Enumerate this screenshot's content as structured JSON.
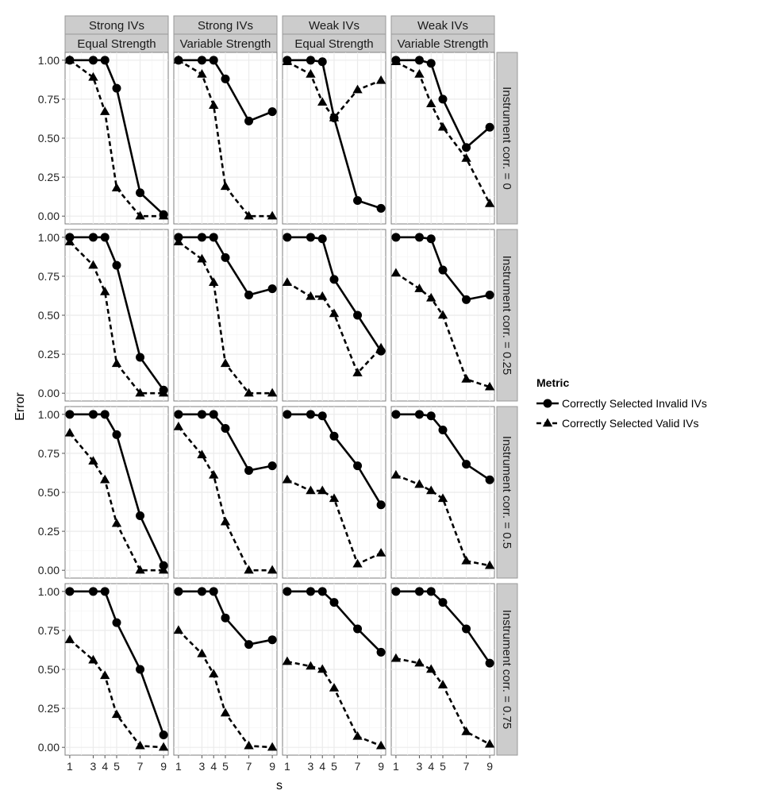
{
  "chart_data": {
    "type": "line",
    "xlabel": "s",
    "ylabel": "Error",
    "x": [
      1,
      3,
      4,
      5,
      7,
      9
    ],
    "x_ticks": [
      "1",
      "3",
      "4",
      "5",
      "7",
      "9"
    ],
    "y_ticks": [
      "0.00",
      "0.25",
      "0.50",
      "0.75",
      "1.00"
    ],
    "ylim": [
      0,
      1
    ],
    "grid": true,
    "legend": {
      "title": "Metric",
      "position": "right",
      "entries": [
        {
          "label": "Correctly Selected Invalid IVs",
          "marker": "circle",
          "line": "solid"
        },
        {
          "label": "Correctly Selected Valid IVs",
          "marker": "triangle",
          "line": "dashed"
        }
      ]
    },
    "columns": [
      {
        "top": "Strong IVs",
        "bottom": "Equal Strength"
      },
      {
        "top": "Strong IVs",
        "bottom": "Variable Strength"
      },
      {
        "top": "Weak IVs",
        "bottom": "Equal Strength"
      },
      {
        "top": "Weak IVs",
        "bottom": "Variable Strength"
      }
    ],
    "rows": [
      {
        "label": "Instrument corr. = 0"
      },
      {
        "label": "Instrument corr. = 0.25"
      },
      {
        "label": "Instrument corr. = 0.5"
      },
      {
        "label": "Instrument corr. = 0.75"
      }
    ],
    "panels": [
      [
        {
          "invalid": [
            1.0,
            1.0,
            1.0,
            0.82,
            0.15,
            0.01
          ],
          "valid": [
            1.0,
            0.89,
            0.67,
            0.18,
            0.0,
            0.0
          ]
        },
        {
          "invalid": [
            1.0,
            1.0,
            1.0,
            0.88,
            0.61,
            0.67
          ],
          "valid": [
            1.0,
            0.91,
            0.71,
            0.19,
            0.0,
            0.0
          ]
        },
        {
          "invalid": [
            1.0,
            1.0,
            0.99,
            0.63,
            0.1,
            0.05
          ],
          "valid": [
            0.99,
            0.91,
            0.73,
            0.63,
            0.81,
            0.87
          ]
        },
        {
          "invalid": [
            1.0,
            1.0,
            0.98,
            0.75,
            0.44,
            0.57
          ],
          "valid": [
            0.99,
            0.91,
            0.72,
            0.57,
            0.37,
            0.08
          ]
        }
      ],
      [
        {
          "invalid": [
            1.0,
            1.0,
            1.0,
            0.82,
            0.23,
            0.02
          ],
          "valid": [
            0.97,
            0.82,
            0.65,
            0.19,
            0.0,
            0.0
          ]
        },
        {
          "invalid": [
            1.0,
            1.0,
            1.0,
            0.87,
            0.63,
            0.67
          ],
          "valid": [
            0.97,
            0.86,
            0.71,
            0.19,
            0.0,
            0.0
          ]
        },
        {
          "invalid": [
            1.0,
            1.0,
            0.99,
            0.73,
            0.5,
            0.27
          ],
          "valid": [
            0.71,
            0.62,
            0.62,
            0.51,
            0.13,
            0.29
          ]
        },
        {
          "invalid": [
            1.0,
            1.0,
            0.99,
            0.79,
            0.6,
            0.63
          ],
          "valid": [
            0.77,
            0.67,
            0.61,
            0.5,
            0.09,
            0.04
          ]
        }
      ],
      [
        {
          "invalid": [
            1.0,
            1.0,
            1.0,
            0.87,
            0.35,
            0.03
          ],
          "valid": [
            0.88,
            0.7,
            0.58,
            0.3,
            0.0,
            0.0
          ]
        },
        {
          "invalid": [
            1.0,
            1.0,
            1.0,
            0.91,
            0.64,
            0.67
          ],
          "valid": [
            0.92,
            0.74,
            0.61,
            0.31,
            0.0,
            0.0
          ]
        },
        {
          "invalid": [
            1.0,
            1.0,
            0.99,
            0.86,
            0.67,
            0.42
          ],
          "valid": [
            0.58,
            0.51,
            0.51,
            0.46,
            0.04,
            0.11
          ]
        },
        {
          "invalid": [
            1.0,
            1.0,
            0.99,
            0.9,
            0.68,
            0.58
          ],
          "valid": [
            0.61,
            0.55,
            0.51,
            0.46,
            0.06,
            0.03
          ]
        }
      ],
      [
        {
          "invalid": [
            1.0,
            1.0,
            1.0,
            0.8,
            0.5,
            0.08
          ],
          "valid": [
            0.69,
            0.56,
            0.46,
            0.21,
            0.01,
            0.0
          ]
        },
        {
          "invalid": [
            1.0,
            1.0,
            1.0,
            0.83,
            0.66,
            0.69
          ],
          "valid": [
            0.75,
            0.6,
            0.47,
            0.22,
            0.01,
            0.0
          ]
        },
        {
          "invalid": [
            1.0,
            1.0,
            1.0,
            0.93,
            0.76,
            0.61
          ],
          "valid": [
            0.55,
            0.52,
            0.5,
            0.38,
            0.07,
            0.01
          ]
        },
        {
          "invalid": [
            1.0,
            1.0,
            1.0,
            0.93,
            0.76,
            0.54
          ],
          "valid": [
            0.57,
            0.54,
            0.5,
            0.4,
            0.1,
            0.02
          ]
        }
      ]
    ]
  }
}
